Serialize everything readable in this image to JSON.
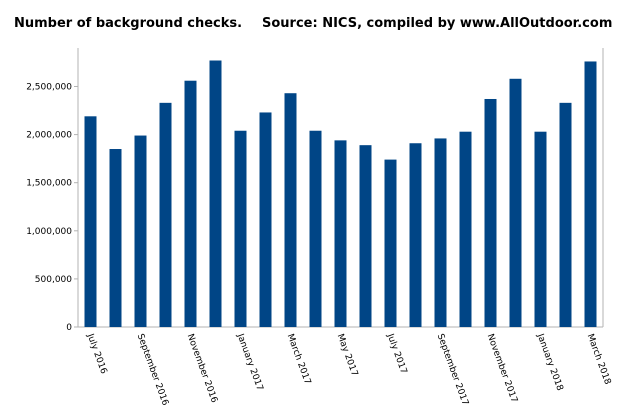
{
  "chart_data": {
    "type": "bar",
    "title": "Number of background checks.",
    "subtitle": "Source: NICS, compiled by www.AllOutdoor.com",
    "categories": [
      "July 2016",
      null,
      "September 2016",
      null,
      "November 2016",
      null,
      "January 2017",
      null,
      "March 2017",
      null,
      "May 2017",
      null,
      "July 2017",
      null,
      "September 2017",
      null,
      "November 2017",
      null,
      "January 2018",
      null,
      "March 2018"
    ],
    "values": [
      2190000,
      1850000,
      1990000,
      2330000,
      2560000,
      2770000,
      2040000,
      2230000,
      2430000,
      2040000,
      1940000,
      1890000,
      1740000,
      1910000,
      1960000,
      2030000,
      2370000,
      2580000,
      2030000,
      2330000,
      2760000
    ],
    "color": "#004586",
    "ylim": [
      0,
      2900000
    ],
    "yticks": [
      0,
      {
        "value": 500000,
        "label": "500,000"
      },
      {
        "value": 1000000,
        "label": "1,000,000"
      },
      {
        "value": 1500000,
        "label": "1,500,000"
      },
      {
        "value": 2000000,
        "label": "2,000,000"
      },
      {
        "value": 2500000,
        "label": "2,500,000"
      }
    ],
    "grid": false
  }
}
